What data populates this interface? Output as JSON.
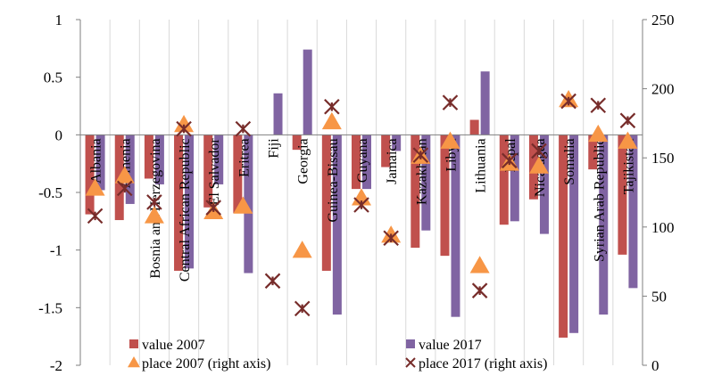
{
  "chart_data": {
    "type": "bar",
    "categories": [
      "Albania",
      "Armenia",
      "Bosnia and Herzegovina",
      "Central African Republic",
      "El Salvador",
      "Eritrea",
      "Fiji",
      "Georgia",
      "Guinea-Bissau",
      "Guyana",
      "Jamaica",
      "Kazakhstan",
      "Libya",
      "Lithuania",
      "Nepal",
      "Nicaragua",
      "Somalia",
      "Syrian Arab Republic",
      "Tajikistan"
    ],
    "series": [
      {
        "name": "value 2007",
        "kind": "bar",
        "axis": "left",
        "color": "#c0504d",
        "values": [
          -0.69,
          -0.74,
          -0.38,
          -1.18,
          -0.63,
          -0.68,
          null,
          -0.13,
          -1.18,
          -0.47,
          -0.28,
          -0.98,
          -1.05,
          0.13,
          -0.78,
          -0.56,
          -1.76,
          -0.3,
          -1.04
        ]
      },
      {
        "name": "value 2017",
        "kind": "bar",
        "axis": "left",
        "color": "#8064a2",
        "values": [
          -0.48,
          -0.6,
          -0.43,
          -1.16,
          -0.43,
          -1.2,
          0.36,
          0.74,
          -1.56,
          -0.47,
          -0.14,
          -0.83,
          -1.58,
          0.55,
          -0.75,
          -0.86,
          -1.72,
          -1.56,
          -1.33
        ]
      },
      {
        "name": "place 2007 (right axis)",
        "kind": "triangle",
        "axis": "right",
        "color": "#f79646",
        "values": [
          128,
          137,
          108,
          174,
          111,
          115,
          null,
          83,
          176,
          121,
          94,
          151,
          162,
          72,
          146,
          144,
          192,
          167,
          162
        ]
      },
      {
        "name": "place 2017 (right axis)",
        "kind": "xstar",
        "axis": "right",
        "color": "#772c2a",
        "values": [
          108,
          128,
          118,
          171,
          114,
          171,
          61,
          41,
          187,
          116,
          92,
          152,
          190,
          54,
          148,
          155,
          191,
          188,
          177
        ]
      }
    ],
    "left_axis": {
      "ylim": [
        -2,
        1
      ],
      "ticks": [
        "-2",
        "-1.5",
        "-1",
        "-0.5",
        "0",
        "0.5",
        "1"
      ]
    },
    "right_axis": {
      "ylim": [
        0,
        250
      ],
      "ticks": [
        "0",
        "50",
        "100",
        "150",
        "200",
        "250"
      ]
    },
    "grid": "vertical",
    "legend_position": "bottom-inside",
    "title": "",
    "xlabel": "",
    "ylabel": ""
  }
}
